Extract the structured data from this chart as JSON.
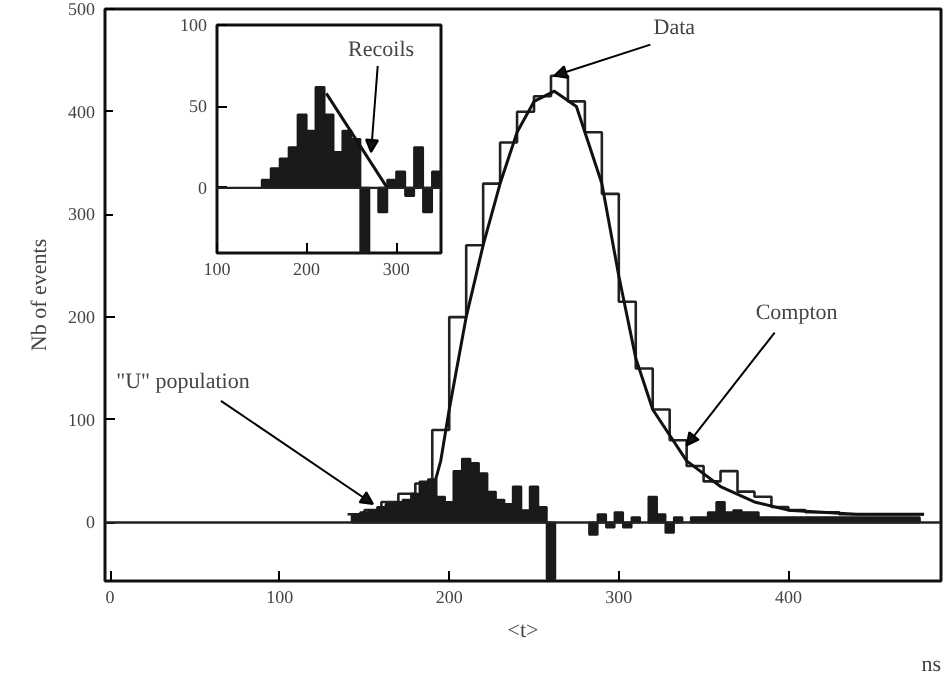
{
  "chart_data": [
    {
      "type": "step",
      "xlabel": "<t>",
      "ylabel": "Nb of events",
      "xlim": [
        -3,
        490
      ],
      "ylim": [
        -57,
        500
      ],
      "xticks": [
        0,
        100,
        200,
        300,
        400
      ],
      "yticks": [
        0,
        100,
        200,
        300,
        400,
        500
      ],
      "grid": false,
      "ref_lines": [
        {
          "axis": "y",
          "value": 0,
          "color": "#222222"
        }
      ],
      "annotations": [
        {
          "text": "Data",
          "x": 262,
          "y": 435
        },
        {
          "text": "Compton",
          "x": 340,
          "y": 75
        },
        {
          "text": "\"U\" population",
          "x": 155,
          "y": 18
        },
        "ns"
      ],
      "series": [
        {
          "color": "#222222",
          "x": [
            140,
            150,
            160,
            170,
            180,
            190,
            200,
            210,
            220,
            230,
            240,
            250,
            260,
            270,
            280,
            290,
            300,
            310,
            320,
            330,
            340,
            350,
            360,
            370,
            380,
            390,
            400,
            410,
            420,
            430,
            440,
            450,
            460,
            470,
            480
          ],
          "values": [
            8,
            12,
            20,
            28,
            38,
            90,
            200,
            270,
            330,
            370,
            400,
            415,
            435,
            410,
            380,
            320,
            215,
            150,
            110,
            80,
            55,
            40,
            50,
            30,
            25,
            15,
            12,
            10,
            10,
            8,
            8,
            8,
            8,
            8,
            8
          ]
        },
        {
          "type": "line",
          "color": "#111111",
          "x": [
            190,
            195,
            200,
            210,
            220,
            230,
            240,
            250,
            262,
            275,
            290,
            300,
            310,
            320,
            340,
            360,
            380,
            400,
            440,
            480
          ],
          "values": [
            30,
            60,
            110,
            200,
            270,
            330,
            380,
            410,
            420,
            405,
            330,
            240,
            160,
            110,
            60,
            35,
            20,
            12,
            8,
            8
          ]
        },
        {
          "type": "bar",
          "color": "#1a1a1a",
          "x": [
            145,
            150,
            155,
            160,
            165,
            170,
            175,
            180,
            185,
            190,
            195,
            200,
            205,
            210,
            215,
            220,
            225,
            230,
            235,
            240,
            245,
            250,
            255,
            260,
            285,
            290,
            295,
            300,
            305,
            310,
            320,
            325,
            330,
            335,
            345,
            350,
            355,
            360,
            365,
            370,
            375,
            380,
            385,
            390,
            395,
            400,
            405,
            410,
            415,
            420,
            425,
            430,
            435,
            440,
            445,
            450,
            455,
            460,
            465,
            470,
            475
          ],
          "values": [
            8,
            10,
            12,
            15,
            18,
            20,
            22,
            28,
            40,
            42,
            25,
            20,
            50,
            62,
            58,
            48,
            30,
            22,
            18,
            35,
            12,
            35,
            15,
            -55,
            -12,
            8,
            -5,
            10,
            -5,
            5,
            25,
            8,
            -10,
            5,
            5,
            5,
            10,
            20,
            10,
            12,
            10,
            10,
            5,
            5,
            5,
            5,
            5,
            5,
            5,
            5,
            5,
            5,
            5,
            5,
            5,
            5,
            5,
            5,
            5,
            5,
            5
          ]
        }
      ]
    },
    {
      "type": "bar",
      "xlim": [
        100,
        350
      ],
      "ylim": [
        -40,
        100
      ],
      "xticks": [
        100,
        200,
        300
      ],
      "yticks": [
        0,
        50,
        100
      ],
      "grid": false,
      "ref_lines": [
        {
          "axis": "y",
          "value": 0,
          "color": "#222222"
        }
      ],
      "annotations": [
        {
          "text": "Recoils",
          "x": 272,
          "y": 22
        }
      ],
      "series": [
        {
          "color": "#1a1a1a",
          "x": [
            155,
            165,
            175,
            185,
            195,
            205,
            215,
            225,
            235,
            245,
            255,
            265,
            285,
            295,
            305,
            315,
            325,
            335,
            345
          ],
          "values": [
            5,
            12,
            18,
            25,
            45,
            35,
            62,
            45,
            22,
            35,
            30,
            -40,
            -15,
            5,
            10,
            -5,
            25,
            -15,
            10
          ]
        },
        {
          "type": "line",
          "color": "#111111",
          "x": [
            222,
            290
          ],
          "values": [
            58,
            0
          ]
        }
      ]
    }
  ]
}
